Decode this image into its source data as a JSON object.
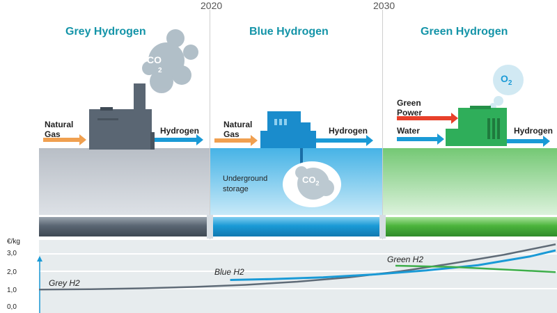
{
  "timeline": {
    "year_2020": "2020",
    "year_2030": "2030"
  },
  "panels": {
    "grey": {
      "title": "Grey Hydrogen",
      "input_line1": "Natural",
      "input_line2": "Gas",
      "output": "Hydrogen",
      "emission_main": "CO",
      "emission_sub": "2"
    },
    "blue": {
      "title": "Blue Hydrogen",
      "input_line1": "Natural",
      "input_line2": "Gas",
      "output": "Hydrogen",
      "storage_line1": "Underground",
      "storage_line2": "storage",
      "emission_main": "CO",
      "emission_sub": "2"
    },
    "green": {
      "title": "Green Hydrogen",
      "input1_line1": "Green",
      "input1_line2": "Power",
      "input2": "Water",
      "output": "Hydrogen",
      "emission_main": "O",
      "emission_sub": "2"
    }
  },
  "colors": {
    "grey": "#5f6b77",
    "blue": "#1a9ad6",
    "green": "#3dae4a",
    "title": "#1494a8",
    "gas_arrow": "#f0a050",
    "power_arrow": "#e8402a",
    "output_arrow": "#1a9ad6"
  },
  "chart_data": {
    "type": "line",
    "ylabel": "€/kg",
    "y_ticks": [
      "0,0",
      "1,0",
      "2,0",
      "3,0"
    ],
    "ylim": [
      0,
      3.6
    ],
    "series_labels": {
      "grey": "Grey H2",
      "blue": "Blue H2",
      "green": "Green H2"
    },
    "series": [
      {
        "name": "Grey H2",
        "x": [
          0,
          0.1,
          0.2,
          0.3,
          0.4,
          0.5,
          0.6,
          0.7,
          0.8,
          0.9,
          1.0
        ],
        "values": [
          0.95,
          0.97,
          1.02,
          1.1,
          1.22,
          1.4,
          1.65,
          2.0,
          2.45,
          2.95,
          3.55
        ]
      },
      {
        "name": "Blue H2",
        "x": [
          0.37,
          0.45,
          0.55,
          0.65,
          0.75,
          0.85,
          0.95,
          1.0
        ],
        "values": [
          1.5,
          1.55,
          1.65,
          1.82,
          2.05,
          2.35,
          2.85,
          3.2
        ]
      },
      {
        "name": "Green H2",
        "x": [
          0.69,
          0.8,
          0.9,
          1.0
        ],
        "values": [
          2.32,
          2.25,
          2.1,
          1.95
        ]
      }
    ]
  }
}
